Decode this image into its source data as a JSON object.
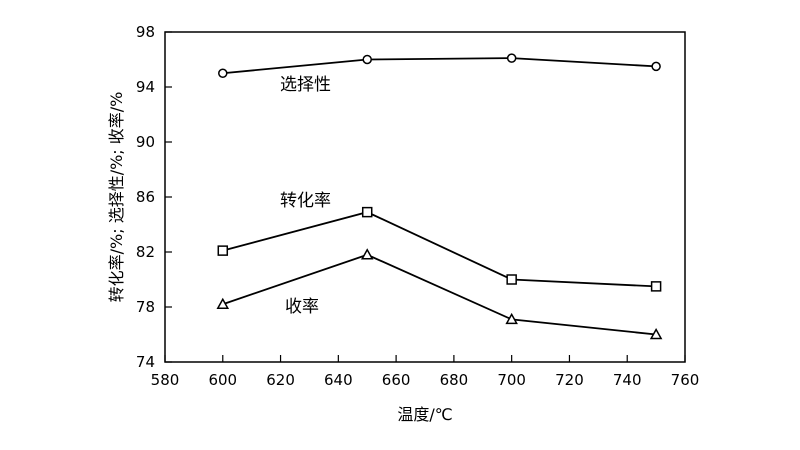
{
  "chart_data": {
    "type": "line",
    "xlabel": "温度/℃",
    "ylabel": "转化率/%; 选择性/%; 收率/%",
    "xlim": [
      580,
      760
    ],
    "ylim": [
      74,
      98
    ],
    "xticks": [
      580,
      600,
      620,
      640,
      660,
      680,
      700,
      720,
      740,
      760
    ],
    "yticks": [
      74,
      78,
      82,
      86,
      90,
      94,
      98
    ],
    "grid": false,
    "x": [
      600,
      650,
      700,
      750
    ],
    "series": [
      {
        "name": "选择性",
        "marker": "circle",
        "values": [
          95.0,
          96.0,
          96.1,
          95.5
        ]
      },
      {
        "name": "转化率",
        "marker": "square",
        "values": [
          82.1,
          84.9,
          80.0,
          79.5
        ]
      },
      {
        "name": "收率",
        "marker": "triangle",
        "values": [
          78.2,
          81.8,
          77.1,
          76.0
        ]
      }
    ]
  }
}
